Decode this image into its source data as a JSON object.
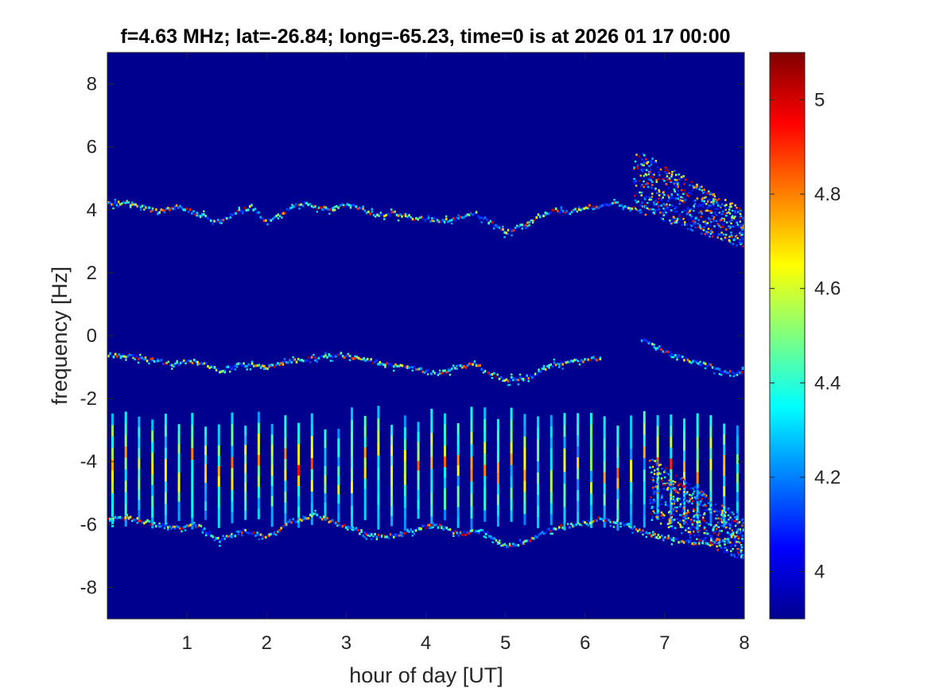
{
  "chart_data": {
    "type": "heatmap",
    "title": "f=4.63 MHz;  lat=-26.84; long=-65.23, time=0 is at 2026 01 17 00:00",
    "xlabel": "hour of day [UT]",
    "ylabel": "frequency [Hz]",
    "xlim": [
      0,
      8
    ],
    "ylim": [
      -9,
      9
    ],
    "xticks": [
      1,
      2,
      3,
      4,
      5,
      6,
      7,
      8
    ],
    "yticks": [
      8,
      6,
      4,
      2,
      0,
      -2,
      -4,
      -6,
      -8
    ],
    "colorbar": {
      "colormap": "jet",
      "clim": [
        3.9,
        5.1
      ],
      "ticks": [
        5,
        4.8,
        4.6,
        4.4,
        4.2,
        4
      ]
    },
    "background_value": 3.9,
    "grid": false,
    "traces": [
      {
        "label_hint": "upper doppler trace",
        "x": [
          0,
          0.3,
          0.6,
          0.9,
          1.2,
          1.4,
          1.6,
          1.8,
          2.0,
          2.2,
          2.4,
          2.6,
          2.8,
          3.0,
          3.2,
          3.4,
          3.6,
          3.8,
          4.0,
          4.2,
          4.4,
          4.6,
          4.8,
          5.0,
          5.2,
          5.4,
          5.6,
          5.8,
          6.0,
          6.2,
          6.4,
          6.6
        ],
        "y": [
          4.2,
          4.2,
          3.95,
          4.1,
          3.8,
          3.6,
          3.9,
          4.1,
          3.6,
          3.9,
          4.2,
          4.1,
          4.0,
          4.2,
          4.0,
          3.8,
          3.9,
          3.75,
          3.7,
          3.65,
          3.7,
          3.9,
          3.6,
          3.3,
          3.5,
          3.8,
          4.0,
          3.9,
          4.1,
          4.1,
          4.2,
          4.0
        ]
      },
      {
        "label_hint": "middle doppler trace",
        "x": [
          0,
          0.4,
          0.8,
          1.1,
          1.4,
          1.7,
          2.0,
          2.3,
          2.6,
          2.9,
          3.5,
          3.8,
          4.1,
          4.4,
          4.6,
          4.8,
          5.0,
          5.3,
          5.6,
          5.9,
          6.2
        ],
        "y": [
          -0.6,
          -0.7,
          -0.9,
          -0.8,
          -1.1,
          -0.9,
          -1.0,
          -0.8,
          -0.7,
          -0.6,
          -0.9,
          -1.0,
          -1.2,
          -1.0,
          -0.9,
          -1.2,
          -1.4,
          -1.3,
          -0.9,
          -0.8,
          -0.7
        ]
      },
      {
        "label_hint": "lower doppler trace",
        "x": [
          0,
          0.3,
          0.6,
          0.9,
          1.1,
          1.4,
          1.7,
          2.0,
          2.3,
          2.6,
          2.9,
          3.2,
          3.5,
          3.8,
          4.1,
          4.4,
          4.7,
          5.0,
          5.3,
          5.6,
          5.9,
          6.2,
          6.5,
          6.8,
          7.1,
          7.4,
          7.7,
          8.0
        ],
        "y": [
          -5.8,
          -5.8,
          -6.0,
          -6.1,
          -6.0,
          -6.5,
          -6.2,
          -6.4,
          -5.9,
          -5.7,
          -6.0,
          -6.3,
          -6.4,
          -6.2,
          -6.0,
          -6.3,
          -6.2,
          -6.7,
          -6.5,
          -6.1,
          -6.0,
          -5.8,
          -6.0,
          -6.3,
          -6.5,
          -6.6,
          -6.5,
          -6.2
        ]
      },
      {
        "label_hint": "late spread trace",
        "x": [
          6.7,
          6.9,
          7.1,
          7.3,
          7.5,
          7.7,
          7.9,
          8.0
        ],
        "y": [
          -0.1,
          -0.4,
          -0.6,
          -0.8,
          -0.9,
          -1.1,
          -1.2,
          -1.0
        ]
      }
    ],
    "spread_regions": [
      {
        "label_hint": "upper spread",
        "x": [
          6.6,
          8.0
        ],
        "y_top": [
          6.0,
          4.0
        ],
        "y_bottom": [
          4.0,
          2.8
        ]
      },
      {
        "label_hint": "lower spread",
        "x": [
          6.8,
          8.0
        ],
        "y_top": [
          -3.8,
          -5.8
        ],
        "y_bottom": [
          -5.8,
          -7.2
        ]
      }
    ],
    "stripes": {
      "x_start": 0.05,
      "x_end": 7.9,
      "spacing_hours": 0.167,
      "y_range": [
        -6.0,
        -2.6
      ]
    }
  }
}
